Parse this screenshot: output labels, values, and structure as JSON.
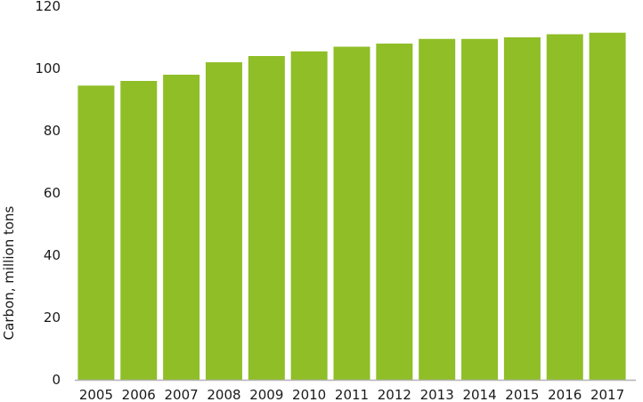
{
  "colors": {
    "bar": "#8fbe27",
    "axis": "#b3b3b3",
    "text": "#1a1a1a"
  },
  "chart_data": {
    "type": "bar",
    "title": "",
    "xlabel": "",
    "ylabel": "Carbon, million tons",
    "ylim": [
      0,
      120
    ],
    "yticks": [
      0,
      20,
      40,
      60,
      80,
      100,
      120
    ],
    "grid": false,
    "categories": [
      "2005",
      "2006",
      "2007",
      "2008",
      "2009",
      "2010",
      "2011",
      "2012",
      "2013",
      "2014",
      "2015",
      "2016",
      "2017"
    ],
    "values": [
      94.5,
      96,
      98,
      102,
      104,
      105.5,
      107,
      108,
      109.5,
      109.5,
      110,
      111,
      111.5
    ]
  }
}
